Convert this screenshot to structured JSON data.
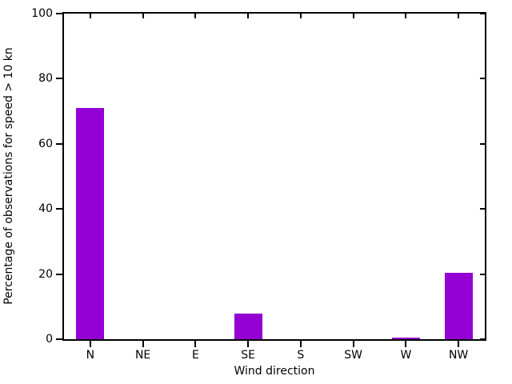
{
  "chart_data": {
    "type": "bar",
    "title": "",
    "xlabel": "Wind direction",
    "ylabel": "Percentage of observations for speed > 10 kn",
    "categories": [
      "N",
      "NE",
      "E",
      "SE",
      "S",
      "SW",
      "W",
      "NW"
    ],
    "values": [
      71,
      0,
      0,
      7.8,
      0,
      0,
      0.6,
      20.5
    ],
    "ylim": [
      0,
      100
    ],
    "yticks": [
      0,
      20,
      40,
      60,
      80,
      100
    ],
    "ytick_labels": [
      "0",
      "20",
      "40",
      "60",
      "80",
      "100"
    ],
    "grid": false,
    "legend": null,
    "bar_color": "#9400d3",
    "axis_color": "#000000",
    "background_color": "#ffffff",
    "tick_style": "out on left/bottom, mirrored in on top/right"
  }
}
